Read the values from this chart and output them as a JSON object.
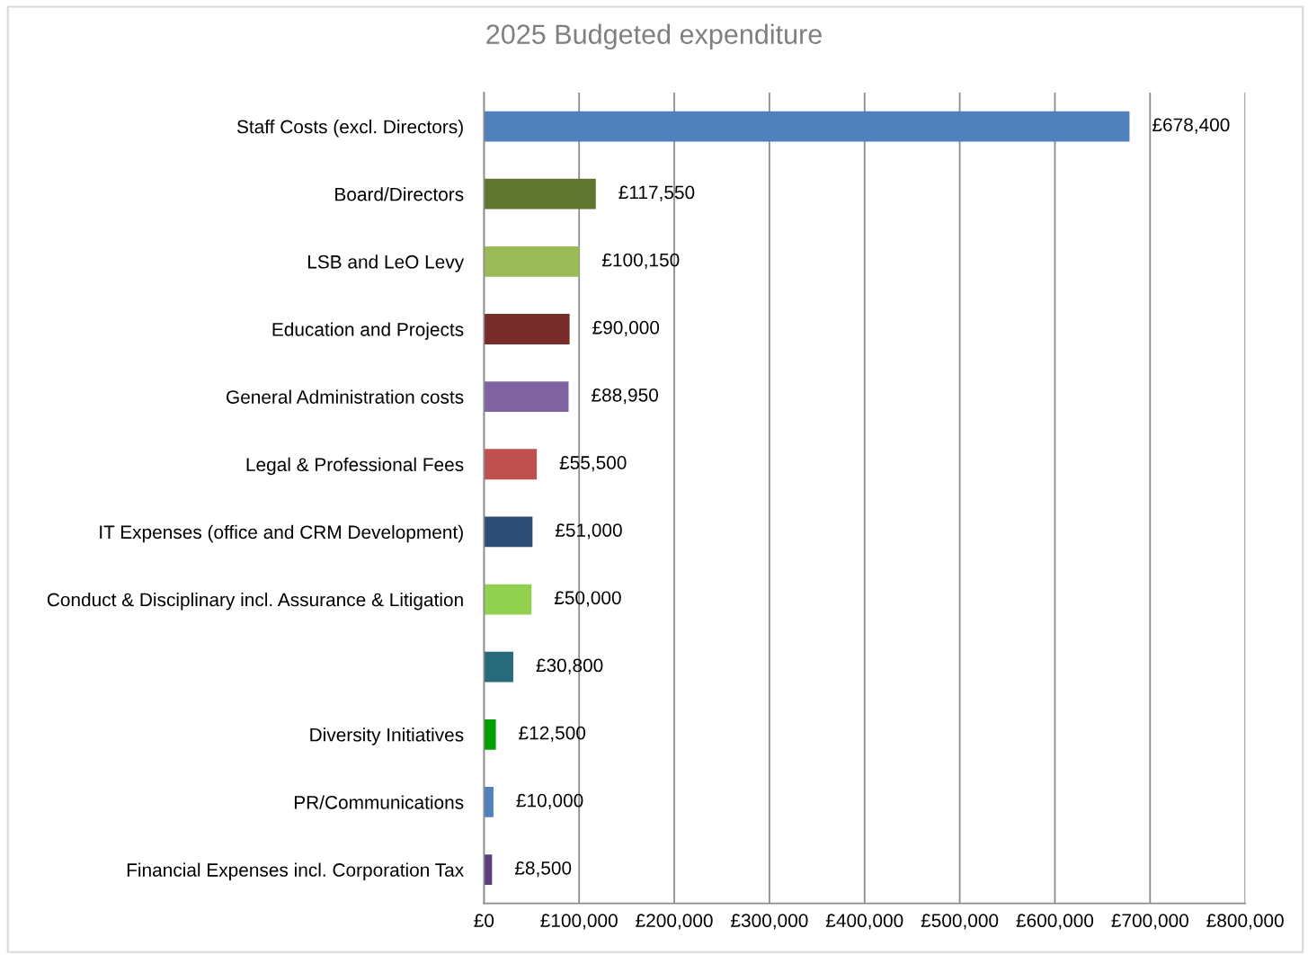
{
  "chart_data": {
    "type": "bar",
    "orientation": "horizontal",
    "title": "2025 Budgeted expenditure",
    "categories": [
      "Staff Costs (excl. Directors)",
      "Board/Directors",
      "LSB and LeO Levy",
      "Education and Projects",
      "General Administration costs",
      "Legal & Professional Fees",
      "IT Expenses (office and CRM Development)",
      "Conduct & Disciplinary incl. Assurance & Litigation",
      null,
      "Diversity Initiatives",
      "PR/Communications",
      "Financial Expenses incl. Corporation Tax"
    ],
    "values": [
      678400,
      117550,
      100150,
      90000,
      88950,
      55500,
      51000,
      50000,
      30800,
      12500,
      10000,
      8500
    ],
    "colors": [
      "#4f81bd",
      "#5f7530",
      "#9bbb59",
      "#772c2a",
      "#8064a2",
      "#c0504d",
      "#2c4d75",
      "#92d050",
      "#276a7c",
      "#00a000",
      "#4f81bd",
      "#5c3f7d"
    ],
    "value_labels": [
      "£678,400",
      "£117,550",
      "£100,150",
      "£90,000",
      "£88,950",
      "£55,500",
      "£51,000",
      "£50,000",
      "£30,800",
      "£12,500",
      "£10,000",
      "£8,500"
    ],
    "xlim": [
      0,
      800000
    ],
    "xticks": [
      {
        "value": 0,
        "label": "£0"
      },
      {
        "value": 100000,
        "label": "£100,000"
      },
      {
        "value": 200000,
        "label": "£200,000"
      },
      {
        "value": 300000,
        "label": "£300,000"
      },
      {
        "value": 400000,
        "label": "£400,000"
      },
      {
        "value": 500000,
        "label": "£500,000"
      },
      {
        "value": 600000,
        "label": "£600,000"
      },
      {
        "value": 700000,
        "label": "£700,000"
      },
      {
        "value": 800000,
        "label": "£800,000"
      }
    ],
    "grid": "x",
    "legend": false
  }
}
